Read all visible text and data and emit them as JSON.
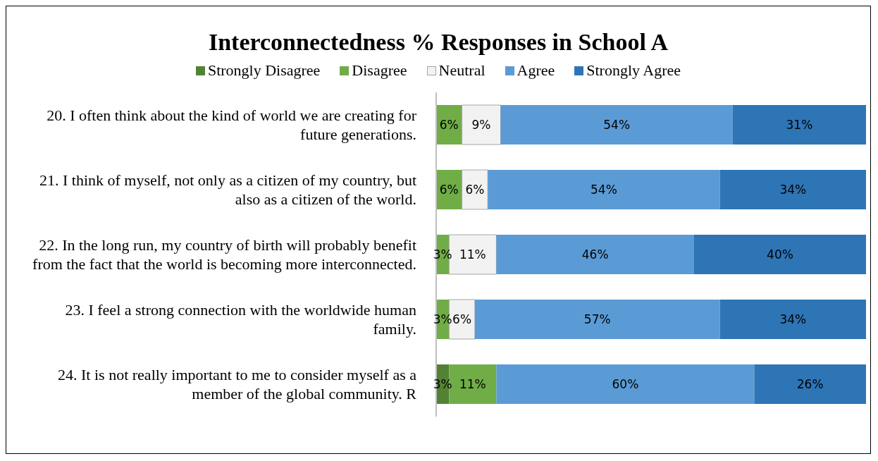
{
  "chart_data": {
    "type": "bar",
    "orientation": "horizontal",
    "stacked": true,
    "title": "Interconnectedness % Responses in School A",
    "legend": "top",
    "categories": [
      "20. I often think about the kind of world we are creating for future generations.",
      "21. I think of myself, not only as a citizen of my country, but also as a citizen of the world.",
      "22. In the long run, my country of birth will probably benefit from the fact that the world is becoming more interconnected.",
      "23. I feel a strong connection with the worldwide human family.",
      "24. It is not really important to me to consider myself as a member of the global community. R"
    ],
    "series": [
      {
        "name": "Strongly Disagree",
        "color": "#548235",
        "values": [
          null,
          null,
          null,
          null,
          3
        ],
        "value_labels": [
          null,
          null,
          null,
          null,
          "3%"
        ]
      },
      {
        "name": "Disagree",
        "color": "#70ad47",
        "values": [
          6,
          6,
          3,
          3,
          11
        ],
        "value_labels": [
          "6%",
          "6%",
          "3%",
          "3%",
          "11%"
        ]
      },
      {
        "name": "Neutral",
        "color": "#f2f2f2",
        "values": [
          9,
          6,
          11,
          6,
          null
        ],
        "value_labels": [
          "9%",
          "6%",
          "11%",
          "6%",
          null
        ]
      },
      {
        "name": "Agree",
        "color": "#5b9bd5",
        "values": [
          54,
          54,
          46,
          57,
          60
        ],
        "value_labels": [
          "54%",
          "54%",
          "46%",
          "57%",
          "60%"
        ]
      },
      {
        "name": "Strongly Agree",
        "color": "#2e75b6",
        "values": [
          31,
          34,
          40,
          34,
          26
        ],
        "value_labels": [
          "31%",
          "34%",
          "40%",
          "34%",
          "26%"
        ]
      }
    ]
  }
}
